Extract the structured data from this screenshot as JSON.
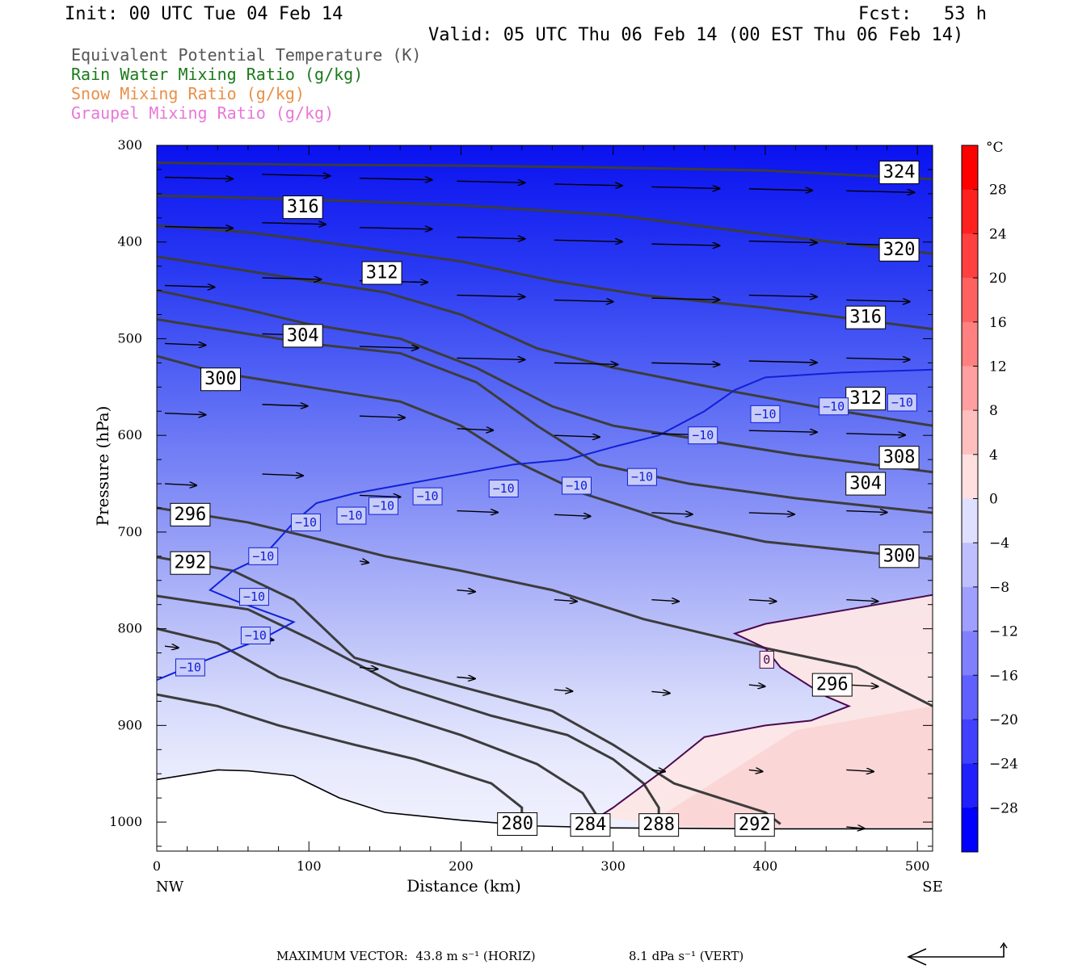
{
  "header": {
    "init": "Init: 00 UTC Tue 04 Feb 14",
    "fcst": "Fcst:   53 h",
    "valid": "Valid: 05 UTC Thu 06 Feb 14 (00 EST Thu 06 Feb 14)"
  },
  "legend": [
    {
      "text": "Equivalent Potential Temperature (K)",
      "color": "#555555"
    },
    {
      "text": "Rain Water Mixing Ratio (g/kg)",
      "color": "#1a7a1a"
    },
    {
      "text": "Snow Mixing Ratio (g/kg)",
      "color": "#e8904a"
    },
    {
      "text": "Graupel Mixing Ratio (g/kg)",
      "color": "#e878d8"
    }
  ],
  "footer": {
    "max_vector": "MAXIMUM VECTOR:  43.8 m s⁻¹ (HORIZ)",
    "vert": "8.1 dPa s⁻¹ (VERT)"
  },
  "chart_data": {
    "type": "cross-section",
    "xlabel": "Distance (km)",
    "ylabel": "Pressure (hPa)",
    "xlim": [
      0,
      510
    ],
    "ylim": [
      300,
      1030
    ],
    "x_ticks": [
      0,
      100,
      200,
      300,
      400,
      500
    ],
    "y_ticks": [
      300,
      400,
      500,
      600,
      700,
      800,
      900,
      1000
    ],
    "x_end_labels": {
      "left": "NW",
      "right": "SE"
    },
    "colorbar": {
      "unit": "°C",
      "tick_labels": [
        "28",
        "24",
        "20",
        "16",
        "12",
        "8",
        "4",
        "0",
        "−4",
        "−8",
        "−12",
        "−16",
        "−20",
        "−24",
        "−28"
      ],
      "min_color": "#0000ff",
      "zero_color": "#ffffff",
      "max_color": "#ff0000"
    },
    "theta_e_contours": [
      {
        "label": "324",
        "points": [
          [
            0,
            318
          ],
          [
            100,
            320
          ],
          [
            200,
            321
          ],
          [
            300,
            323
          ],
          [
            400,
            326
          ],
          [
            510,
            335
          ]
        ],
        "label_at": [
          488,
          328
        ]
      },
      {
        "label": "320",
        "points": [
          [
            0,
            352
          ],
          [
            100,
            356
          ],
          [
            200,
            362
          ],
          [
            300,
            372
          ],
          [
            400,
            392
          ],
          [
            510,
            412
          ]
        ],
        "label_at": [
          488,
          408
        ]
      },
      {
        "label": "316",
        "points": [
          [
            0,
            383
          ],
          [
            60,
            390
          ],
          [
            100,
            398
          ],
          [
            200,
            420
          ],
          [
            260,
            440
          ],
          [
            320,
            455
          ],
          [
            400,
            468
          ],
          [
            450,
            478
          ],
          [
            510,
            490
          ]
        ],
        "label_at": [
          96,
          364
        ]
      },
      {
        "label": "316",
        "points": [],
        "label_at": [
          466,
          478
        ]
      },
      {
        "label": "312",
        "points": [
          [
            0,
            415
          ],
          [
            60,
            430
          ],
          [
            100,
            440
          ],
          [
            150,
            452
          ],
          [
            200,
            475
          ],
          [
            250,
            510
          ],
          [
            300,
            530
          ],
          [
            380,
            555
          ],
          [
            450,
            575
          ],
          [
            510,
            590
          ]
        ],
        "label_at": [
          148,
          432
        ]
      },
      {
        "label": "312",
        "points": [],
        "label_at": [
          466,
          562
        ]
      },
      {
        "label": "308",
        "points": [
          [
            0,
            450
          ],
          [
            60,
            470
          ],
          [
            100,
            485
          ],
          [
            160,
            500
          ],
          [
            210,
            530
          ],
          [
            260,
            570
          ],
          [
            300,
            590
          ],
          [
            360,
            605
          ],
          [
            420,
            620
          ],
          [
            510,
            638
          ]
        ],
        "label_at": [
          488,
          623
        ]
      },
      {
        "label": "304",
        "points": [
          [
            0,
            480
          ],
          [
            60,
            495
          ],
          [
            100,
            505
          ],
          [
            160,
            515
          ],
          [
            210,
            545
          ],
          [
            250,
            590
          ],
          [
            290,
            630
          ],
          [
            350,
            650
          ],
          [
            420,
            665
          ],
          [
            510,
            680
          ]
        ],
        "label_at": [
          96,
          497
        ]
      },
      {
        "label": "304",
        "points": [],
        "label_at": [
          466,
          650
        ]
      },
      {
        "label": "300",
        "points": [
          [
            0,
            518
          ],
          [
            40,
            535
          ],
          [
            100,
            550
          ],
          [
            160,
            565
          ],
          [
            200,
            590
          ],
          [
            240,
            630
          ],
          [
            280,
            660
          ],
          [
            340,
            690
          ],
          [
            400,
            710
          ],
          [
            510,
            728
          ]
        ],
        "label_at": [
          42,
          542
        ]
      },
      {
        "label": "300",
        "points": [],
        "label_at": [
          488,
          725
        ]
      },
      {
        "label": "296",
        "points": [
          [
            0,
            675
          ],
          [
            60,
            690
          ],
          [
            100,
            705
          ],
          [
            150,
            725
          ],
          [
            200,
            740
          ],
          [
            260,
            760
          ],
          [
            320,
            790
          ],
          [
            400,
            820
          ],
          [
            460,
            840
          ],
          [
            510,
            880
          ]
        ],
        "label_at": [
          22,
          682
        ]
      },
      {
        "label": "296",
        "points": [],
        "label_at": [
          444,
          858
        ]
      },
      {
        "label": "292",
        "points": [
          [
            0,
            726
          ],
          [
            50,
            740
          ],
          [
            90,
            770
          ],
          [
            130,
            830
          ],
          [
            200,
            860
          ],
          [
            260,
            885
          ],
          [
            300,
            920
          ],
          [
            340,
            960
          ],
          [
            400,
            990
          ],
          [
            410,
            1002
          ]
        ],
        "label_at": [
          22,
          732
        ]
      },
      {
        "label": "292",
        "points": [],
        "label_at": [
          393,
          1003
        ]
      },
      {
        "label": "288",
        "points": [
          [
            0,
            766
          ],
          [
            60,
            780
          ],
          [
            100,
            810
          ],
          [
            160,
            860
          ],
          [
            220,
            890
          ],
          [
            270,
            910
          ],
          [
            300,
            935
          ],
          [
            320,
            960
          ],
          [
            330,
            985
          ],
          [
            330,
            1000
          ]
        ],
        "label_at": [
          330,
          1003
        ]
      },
      {
        "label": "284",
        "points": [
          [
            0,
            800
          ],
          [
            40,
            815
          ],
          [
            80,
            850
          ],
          [
            140,
            880
          ],
          [
            200,
            910
          ],
          [
            250,
            940
          ],
          [
            280,
            970
          ],
          [
            290,
            995
          ]
        ],
        "label_at": [
          285,
          1003
        ]
      },
      {
        "label": "280",
        "points": [
          [
            0,
            868
          ],
          [
            40,
            880
          ],
          [
            80,
            900
          ],
          [
            130,
            920
          ],
          [
            170,
            935
          ],
          [
            220,
            960
          ],
          [
            240,
            985
          ],
          [
            240,
            1000
          ]
        ],
        "label_at": [
          237,
          1002
        ]
      }
    ],
    "isotherm_minus10": {
      "label": "−10",
      "points": [
        [
          0,
          853
        ],
        [
          20,
          840
        ],
        [
          70,
          810
        ],
        [
          90,
          793
        ],
        [
          50,
          770
        ],
        [
          35,
          760
        ],
        [
          50,
          740
        ],
        [
          70,
          725
        ],
        [
          90,
          690
        ],
        [
          105,
          670
        ],
        [
          130,
          660
        ],
        [
          165,
          650
        ],
        [
          200,
          640
        ],
        [
          235,
          630
        ],
        [
          270,
          625
        ],
        [
          300,
          612
        ],
        [
          330,
          600
        ],
        [
          360,
          575
        ],
        [
          380,
          553
        ],
        [
          400,
          540
        ],
        [
          450,
          535
        ],
        [
          510,
          532
        ]
      ],
      "label_positions": [
        [
          22,
          840
        ],
        [
          65,
          807
        ],
        [
          64,
          767
        ],
        [
          70,
          725
        ],
        [
          98,
          690
        ],
        [
          128,
          683
        ],
        [
          149,
          673
        ],
        [
          178,
          663
        ],
        [
          228,
          655
        ],
        [
          276,
          652
        ],
        [
          319,
          643
        ],
        [
          359,
          600
        ],
        [
          400,
          578
        ],
        [
          445,
          570
        ],
        [
          490,
          566
        ]
      ]
    },
    "isotherm_zero": {
      "label": "0",
      "points": [
        [
          510,
          765
        ],
        [
          400,
          795
        ],
        [
          380,
          805
        ],
        [
          400,
          820
        ],
        [
          410,
          840
        ],
        [
          440,
          870
        ],
        [
          455,
          880
        ],
        [
          430,
          895
        ],
        [
          400,
          900
        ],
        [
          360,
          912
        ],
        [
          330,
          950
        ],
        [
          300,
          985
        ],
        [
          290,
          995
        ]
      ],
      "label_at": [
        401,
        832
      ]
    },
    "terrain": {
      "points": [
        [
          0,
          956
        ],
        [
          40,
          946
        ],
        [
          60,
          947
        ],
        [
          90,
          952
        ],
        [
          120,
          975
        ],
        [
          150,
          990
        ],
        [
          200,
          998
        ],
        [
          250,
          1004
        ],
        [
          300,
          1006
        ],
        [
          400,
          1007
        ],
        [
          510,
          1007
        ]
      ]
    },
    "wind_vectors": [
      {
        "x": 0,
        "p": 333,
        "u": 0.3
      },
      {
        "x": 64,
        "p": 330,
        "u": 0.3
      },
      {
        "x": 128,
        "p": 334,
        "u": 0.32
      },
      {
        "x": 192,
        "p": 337,
        "u": 0.3
      },
      {
        "x": 256,
        "p": 340,
        "u": 0.3
      },
      {
        "x": 320,
        "p": 343,
        "u": 0.3
      },
      {
        "x": 384,
        "p": 345,
        "u": 0.28
      },
      {
        "x": 448,
        "p": 347,
        "u": 0.3
      },
      {
        "x": 0,
        "p": 384,
        "u": 0.3
      },
      {
        "x": 64,
        "p": 380,
        "u": 0.28
      },
      {
        "x": 128,
        "p": 385,
        "u": 0.32
      },
      {
        "x": 192,
        "p": 395,
        "u": 0.3
      },
      {
        "x": 256,
        "p": 398,
        "u": 0.3
      },
      {
        "x": 320,
        "p": 402,
        "u": 0.3
      },
      {
        "x": 384,
        "p": 399,
        "u": 0.3
      },
      {
        "x": 448,
        "p": 402,
        "u": 0.28
      },
      {
        "x": 0,
        "p": 445,
        "u": 0.22
      },
      {
        "x": 64,
        "p": 437,
        "u": 0.26
      },
      {
        "x": 128,
        "p": 440,
        "u": 0.3
      },
      {
        "x": 192,
        "p": 455,
        "u": 0.3
      },
      {
        "x": 256,
        "p": 460,
        "u": 0.26
      },
      {
        "x": 320,
        "p": 458,
        "u": 0.3
      },
      {
        "x": 384,
        "p": 455,
        "u": 0.3
      },
      {
        "x": 448,
        "p": 460,
        "u": 0.28
      },
      {
        "x": 0,
        "p": 505,
        "u": 0.18
      },
      {
        "x": 64,
        "p": 495,
        "u": 0.22
      },
      {
        "x": 128,
        "p": 508,
        "u": 0.26
      },
      {
        "x": 192,
        "p": 520,
        "u": 0.3
      },
      {
        "x": 256,
        "p": 525,
        "u": 0.28
      },
      {
        "x": 320,
        "p": 525,
        "u": 0.3
      },
      {
        "x": 384,
        "p": 523,
        "u": 0.3
      },
      {
        "x": 448,
        "p": 520,
        "u": 0.28
      },
      {
        "x": 0,
        "p": 577,
        "u": 0.18
      },
      {
        "x": 64,
        "p": 568,
        "u": 0.2
      },
      {
        "x": 128,
        "p": 580,
        "u": 0.2
      },
      {
        "x": 192,
        "p": 593,
        "u": 0.16
      },
      {
        "x": 256,
        "p": 600,
        "u": 0.2
      },
      {
        "x": 320,
        "p": 598,
        "u": 0.26
      },
      {
        "x": 384,
        "p": 595,
        "u": 0.3
      },
      {
        "x": 448,
        "p": 598,
        "u": 0.26
      },
      {
        "x": 0,
        "p": 650,
        "u": 0.14
      },
      {
        "x": 64,
        "p": 640,
        "u": 0.18
      },
      {
        "x": 128,
        "p": 662,
        "u": 0.18
      },
      {
        "x": 192,
        "p": 678,
        "u": 0.18
      },
      {
        "x": 256,
        "p": 682,
        "u": 0.16
      },
      {
        "x": 320,
        "p": 680,
        "u": 0.18
      },
      {
        "x": 384,
        "p": 680,
        "u": 0.2
      },
      {
        "x": 448,
        "p": 678,
        "u": 0.18
      },
      {
        "x": 128,
        "p": 730,
        "u": 0.04
      },
      {
        "x": 192,
        "p": 760,
        "u": 0.08
      },
      {
        "x": 256,
        "p": 770,
        "u": 0.1
      },
      {
        "x": 320,
        "p": 770,
        "u": 0.12
      },
      {
        "x": 384,
        "p": 770,
        "u": 0.12
      },
      {
        "x": 448,
        "p": 770,
        "u": 0.14
      },
      {
        "x": 0,
        "p": 818,
        "u": 0.06
      },
      {
        "x": 64,
        "p": 810,
        "u": 0.05
      },
      {
        "x": 128,
        "p": 840,
        "u": 0.08
      },
      {
        "x": 192,
        "p": 850,
        "u": 0.08
      },
      {
        "x": 256,
        "p": 863,
        "u": 0.08
      },
      {
        "x": 320,
        "p": 865,
        "u": 0.08
      },
      {
        "x": 384,
        "p": 858,
        "u": 0.07
      },
      {
        "x": 448,
        "p": 858,
        "u": 0.14
      },
      {
        "x": 320,
        "p": 946,
        "u": 0.06
      },
      {
        "x": 384,
        "p": 946,
        "u": 0.06
      },
      {
        "x": 448,
        "p": 946,
        "u": 0.12
      },
      {
        "x": 448,
        "p": 1005,
        "u": 0.08
      }
    ]
  }
}
